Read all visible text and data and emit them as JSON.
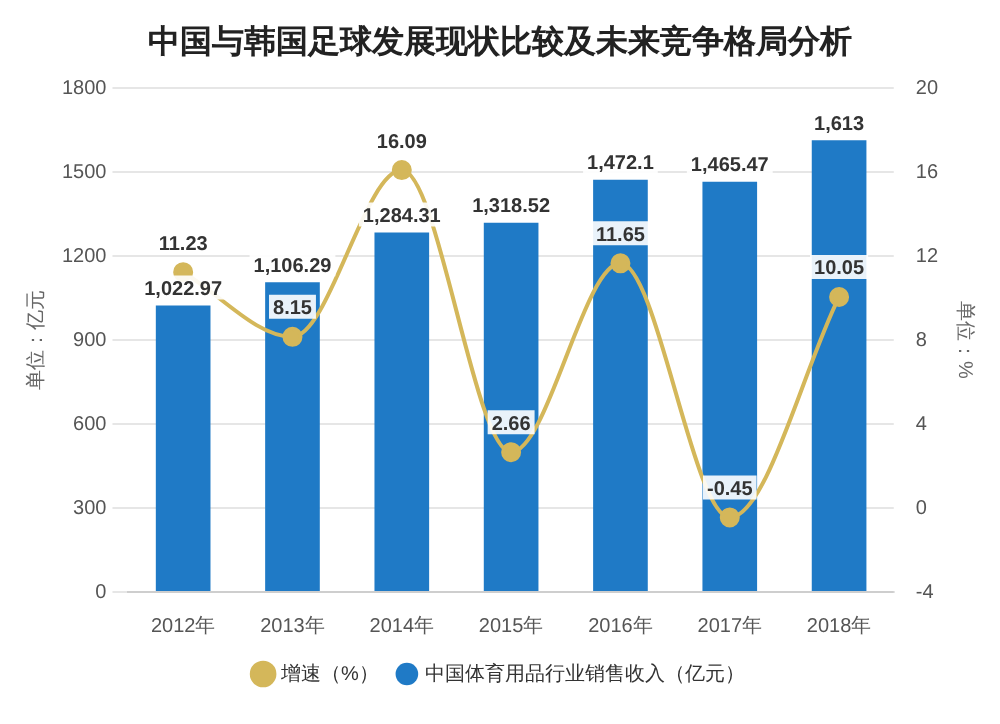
{
  "chart_data": {
    "type": "bar",
    "title": "中国与韩国足球发展现状比较及未来竞争格局分析",
    "ylabel": "单位：亿元",
    "y2label": "单位：%",
    "categories": [
      "2012年",
      "2013年",
      "2014年",
      "2015年",
      "2016年",
      "2017年",
      "2018年"
    ],
    "series": [
      {
        "name": "中国体育用品行业销售收入（亿元）",
        "color": "#1f7ac6",
        "values": [
          1022.97,
          1106.29,
          1284.31,
          1318.52,
          1472.1,
          1465.47,
          1613
        ],
        "value_labels": [
          "1,022.97",
          "1,106.29",
          "1,284.31",
          "1,318.52",
          "1,472.1",
          "1,465.47",
          "1,613"
        ]
      },
      {
        "name": "增速（%）",
        "type": "line",
        "axis": "y2",
        "color": "#d4b75a",
        "values": [
          11.23,
          8.15,
          16.09,
          2.66,
          11.65,
          -0.45,
          10.05
        ],
        "value_labels": [
          "11.23",
          "8.15",
          "16.09",
          "2.66",
          "11.65",
          "-0.45",
          "10.05"
        ]
      }
    ],
    "ylim": [
      0,
      1800
    ],
    "yticks": [
      0,
      300,
      600,
      900,
      1200,
      1500,
      1800
    ],
    "y2lim": [
      -4,
      20
    ],
    "y2ticks": [
      -4,
      0,
      4,
      8,
      12,
      16,
      20
    ],
    "grid": "y",
    "legend": "bottom",
    "marker": "circle",
    "line_style": "solid"
  }
}
